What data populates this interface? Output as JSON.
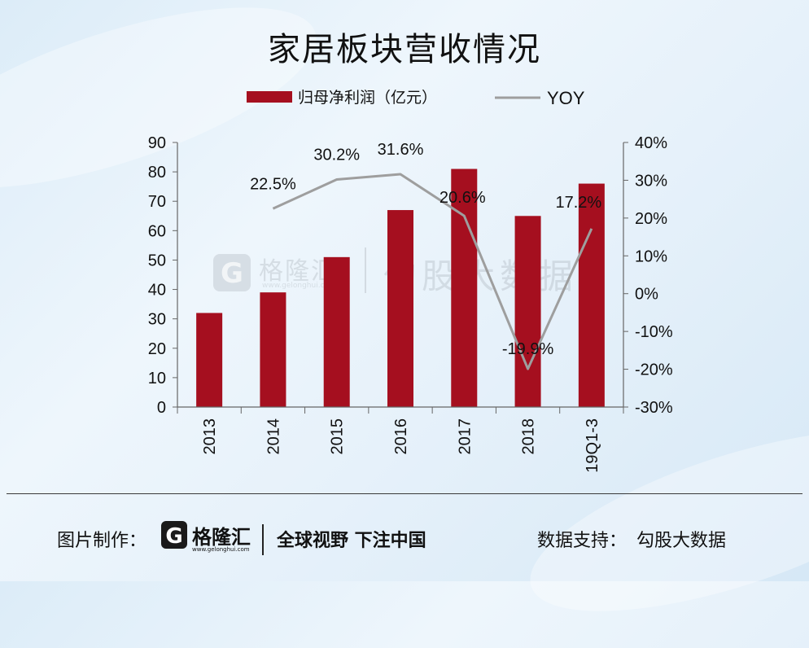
{
  "title": "家居板块营收情况",
  "watermark": {
    "brand": "格隆汇",
    "domain": "www.gelonghui.com",
    "source": "勾股大数据"
  },
  "footer": {
    "made_by_label": "图片制作：",
    "logo_brand": "格隆汇",
    "logo_domain": "www.gelonghui.com",
    "slogan": "全球视野 下注中国",
    "support_label": "数据支持：",
    "support_name": "勾股大数据"
  },
  "colors": {
    "bar": "#a50f1f",
    "line": "#9e9e9e",
    "axis": "#666666"
  },
  "chart_data": {
    "type": "bar",
    "title": "家居板块营收情况",
    "categories": [
      "2013",
      "2014",
      "2015",
      "2016",
      "2017",
      "2018",
      "19Q1-3"
    ],
    "series": [
      {
        "name": "归母净利润（亿元）",
        "type": "bar",
        "axis": "left",
        "values": [
          32,
          39,
          51,
          67,
          81,
          65,
          76
        ]
      },
      {
        "name": "YOY",
        "type": "line",
        "axis": "right",
        "values": [
          null,
          22.5,
          30.2,
          31.6,
          20.6,
          -19.9,
          17.2
        ],
        "labels": [
          "",
          "22.5%",
          "30.2%",
          "31.6%",
          "20.6%",
          "-19.9%",
          "17.2%"
        ]
      }
    ],
    "y_left": {
      "min": 0,
      "max": 90,
      "step": 10,
      "ticks": [
        "0",
        "10",
        "20",
        "30",
        "40",
        "50",
        "60",
        "70",
        "80",
        "90"
      ]
    },
    "y_right": {
      "min": -30,
      "max": 40,
      "step": 10,
      "ticks": [
        "-30%",
        "-20%",
        "-10%",
        "0%",
        "10%",
        "20%",
        "30%",
        "40%"
      ]
    },
    "legend_position": "top",
    "grid": false
  }
}
